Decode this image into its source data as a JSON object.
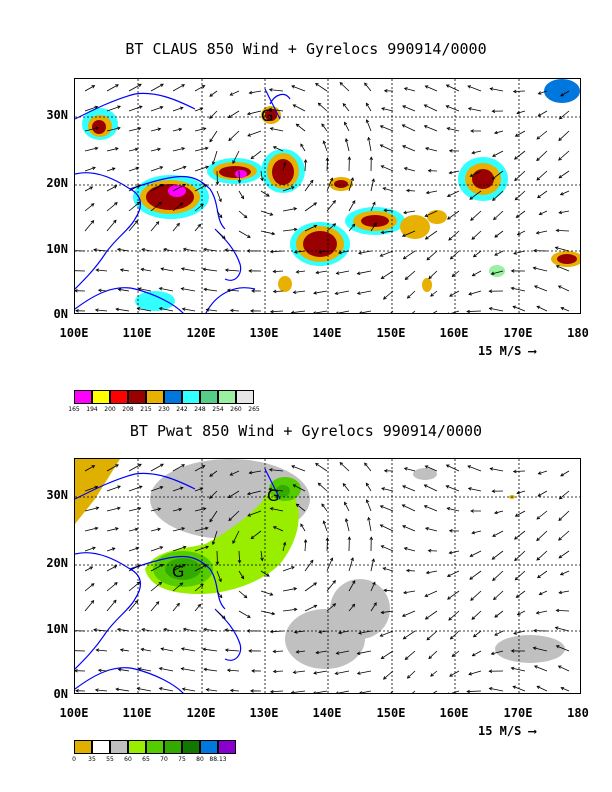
{
  "panels": [
    {
      "title": "BT CLAUS 850 Wind + Gyrelocs 990914/0000",
      "lat_labels": [
        "30N",
        "20N",
        "10N",
        "0N"
      ],
      "lon_labels": [
        "100E",
        "110E",
        "120E",
        "130E",
        "140E",
        "150E",
        "160E",
        "170E",
        "180"
      ],
      "scale_label": "15 M/S",
      "gyre_markers": [
        "G"
      ],
      "colorbar": {
        "colors": [
          "#ff00ff",
          "#ffff00",
          "#ff0000",
          "#9a0000",
          "#e8b000",
          "#0077dd",
          "#33ffff",
          "#55cc88",
          "#99f0a0",
          "#e6e6e6"
        ],
        "labels": [
          "165",
          "194",
          "200",
          "208",
          "215",
          "230",
          "242",
          "248",
          "254",
          "260",
          "265"
        ]
      }
    },
    {
      "title": "BT Pwat 850 Wind + Gyrelocs 990914/0000",
      "lat_labels": [
        "30N",
        "20N",
        "10N",
        "0N"
      ],
      "lon_labels": [
        "100E",
        "110E",
        "120E",
        "130E",
        "140E",
        "150E",
        "160E",
        "170E",
        "180"
      ],
      "scale_label": "15 M/S",
      "gyre_markers": [
        "G",
        "G"
      ],
      "colorbar": {
        "colors": [
          "#e0b000",
          "#ffffff",
          "#c0c0c0",
          "#99ee00",
          "#55cc00",
          "#33aa00",
          "#117700",
          "#0077dd",
          "#8800cc"
        ],
        "labels": [
          "0",
          "35",
          "55",
          "60",
          "65",
          "70",
          "75",
          "80",
          "88.13"
        ]
      }
    }
  ]
}
